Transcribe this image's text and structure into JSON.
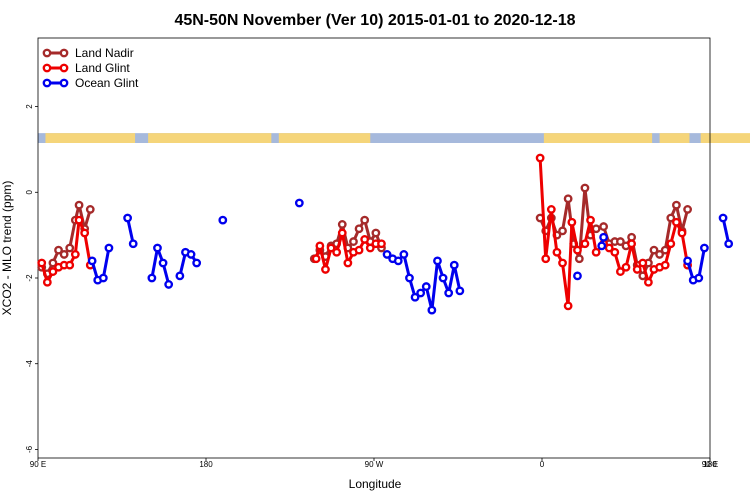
{
  "chart_data": {
    "type": "line",
    "title": "45N-50N November (Ver 10)   2015-01-01 to 2020-12-18",
    "xlabel": "Longitude",
    "ylabel": "XCO2 - MLO trend (ppm)",
    "xlim": [
      90,
      450
    ],
    "ylim": [
      -6.2,
      3.6
    ],
    "x_ticks": [
      {
        "value": 90,
        "label": "90 E"
      },
      {
        "value": 180,
        "label": "180"
      },
      {
        "value": 270,
        "label": "90 W"
      },
      {
        "value": 360,
        "label": "0"
      },
      {
        "value": 450,
        "label": "90 E"
      },
      {
        "value": 540,
        "label": "180"
      }
    ],
    "y_ticks": [
      {
        "value": 2,
        "label": "2"
      },
      {
        "value": 0,
        "label": "0"
      },
      {
        "value": -2,
        "label": "-2"
      },
      {
        "value": -4,
        "label": "-4"
      },
      {
        "value": -6,
        "label": "-6"
      }
    ],
    "land_band": {
      "y_top": 1.38,
      "y_bottom": 1.15,
      "ocean_color": "#a6b9dc",
      "land_color": "#f5d57a",
      "land_segments": [
        [
          94,
          142
        ],
        [
          149,
          215
        ],
        [
          219,
          268
        ],
        [
          361,
          419
        ],
        [
          423,
          439
        ],
        [
          445,
          486
        ],
        [
          503,
          519
        ]
      ]
    },
    "legend": {
      "position": "top-left"
    },
    "series": [
      {
        "name": "Land Nadir",
        "color": "#a52a2a",
        "segments": [
          [
            [
              92,
              -1.75
            ],
            [
              95,
              -1.9
            ],
            [
              98,
              -1.65
            ],
            [
              101,
              -1.35
            ],
            [
              104,
              -1.45
            ],
            [
              107,
              -1.3
            ],
            [
              110,
              -0.65
            ],
            [
              112,
              -0.3
            ],
            [
              115,
              -0.85
            ],
            [
              118,
              -0.4
            ]
          ],
          [
            [
              238,
              -1.55
            ],
            [
              241,
              -1.35
            ],
            [
              244,
              -1.5
            ],
            [
              247,
              -1.25
            ],
            [
              250,
              -1.2
            ],
            [
              253,
              -0.75
            ],
            [
              256,
              -1.3
            ],
            [
              259,
              -1.15
            ],
            [
              262,
              -0.85
            ],
            [
              265,
              -0.65
            ],
            [
              268,
              -1.15
            ],
            [
              271,
              -0.95
            ],
            [
              274,
              -1.3
            ]
          ],
          [
            [
              359,
              -0.6
            ],
            [
              362,
              -0.9
            ],
            [
              365,
              -0.6
            ],
            [
              368,
              -1.0
            ],
            [
              371,
              -0.9
            ],
            [
              374,
              -0.15
            ],
            [
              377,
              -1.2
            ],
            [
              380,
              -1.55
            ],
            [
              383,
              0.1
            ],
            [
              386,
              -1.0
            ],
            [
              389,
              -0.85
            ],
            [
              393,
              -0.8
            ],
            [
              396,
              -1.2
            ],
            [
              399,
              -1.15
            ],
            [
              402,
              -1.15
            ],
            [
              405,
              -1.25
            ],
            [
              408,
              -1.05
            ],
            [
              411,
              -1.7
            ],
            [
              414,
              -1.95
            ],
            [
              417,
              -1.65
            ],
            [
              420,
              -1.35
            ],
            [
              423,
              -1.45
            ],
            [
              426,
              -1.35
            ],
            [
              429,
              -0.6
            ],
            [
              432,
              -0.3
            ],
            [
              435,
              -0.9
            ],
            [
              438,
              -0.4
            ]
          ]
        ]
      },
      {
        "name": "Land Glint",
        "color": "#ee0000",
        "segments": [
          [
            [
              92,
              -1.65
            ],
            [
              95,
              -2.1
            ],
            [
              98,
              -1.85
            ],
            [
              101,
              -1.75
            ],
            [
              104,
              -1.7
            ],
            [
              107,
              -1.7
            ],
            [
              110,
              -1.45
            ],
            [
              112,
              -0.65
            ],
            [
              115,
              -0.95
            ],
            [
              118,
              -1.7
            ]
          ],
          [
            [
              239,
              -1.55
            ],
            [
              241,
              -1.25
            ],
            [
              244,
              -1.8
            ],
            [
              247,
              -1.3
            ],
            [
              250,
              -1.4
            ],
            [
              253,
              -0.95
            ],
            [
              256,
              -1.65
            ],
            [
              259,
              -1.4
            ],
            [
              262,
              -1.35
            ],
            [
              265,
              -1.1
            ],
            [
              268,
              -1.3
            ],
            [
              271,
              -1.2
            ],
            [
              274,
              -1.2
            ]
          ],
          [
            [
              359,
              0.8
            ],
            [
              362,
              -1.55
            ],
            [
              365,
              -0.4
            ],
            [
              368,
              -1.4
            ],
            [
              371,
              -1.65
            ],
            [
              374,
              -2.65
            ],
            [
              376,
              -0.7
            ],
            [
              379,
              -1.35
            ],
            [
              383,
              -1.2
            ],
            [
              386,
              -0.65
            ],
            [
              389,
              -1.4
            ],
            [
              393,
              -1.2
            ],
            [
              396,
              -1.3
            ],
            [
              399,
              -1.4
            ],
            [
              402,
              -1.85
            ],
            [
              405,
              -1.75
            ],
            [
              408,
              -1.2
            ],
            [
              411,
              -1.8
            ],
            [
              414,
              -1.65
            ],
            [
              417,
              -2.1
            ],
            [
              420,
              -1.8
            ],
            [
              423,
              -1.75
            ],
            [
              426,
              -1.7
            ],
            [
              429,
              -1.2
            ],
            [
              432,
              -0.7
            ],
            [
              435,
              -0.95
            ],
            [
              438,
              -1.7
            ]
          ]
        ]
      },
      {
        "name": "Ocean Glint",
        "color": "#0000ee",
        "segments": [
          [
            [
              119,
              -1.6
            ],
            [
              122,
              -2.05
            ],
            [
              125,
              -2.0
            ],
            [
              128,
              -1.3
            ]
          ],
          [
            [
              138,
              -0.6
            ],
            [
              141,
              -1.2
            ]
          ],
          [
            [
              151,
              -2.0
            ],
            [
              154,
              -1.3
            ],
            [
              157,
              -1.65
            ],
            [
              160,
              -2.15
            ]
          ],
          [
            [
              166,
              -1.95
            ],
            [
              169,
              -1.4
            ],
            [
              172,
              -1.45
            ],
            [
              175,
              -1.65
            ]
          ],
          [
            [
              189,
              -0.65
            ]
          ],
          [
            [
              230,
              -0.25
            ]
          ],
          [
            [
              277,
              -1.45
            ],
            [
              280,
              -1.55
            ],
            [
              283,
              -1.6
            ],
            [
              286,
              -1.45
            ],
            [
              289,
              -2.0
            ],
            [
              292,
              -2.45
            ],
            [
              295,
              -2.35
            ],
            [
              298,
              -2.2
            ],
            [
              301,
              -2.75
            ],
            [
              304,
              -1.6
            ],
            [
              307,
              -2.0
            ],
            [
              310,
              -2.35
            ],
            [
              313,
              -1.7
            ],
            [
              316,
              -2.3
            ]
          ],
          [
            [
              379,
              -1.95
            ]
          ],
          [
            [
              392,
              -1.25
            ],
            [
              393,
              -1.05
            ]
          ],
          [
            [
              438,
              -1.6
            ],
            [
              441,
              -2.05
            ],
            [
              444,
              -2.0
            ],
            [
              447,
              -1.3
            ]
          ],
          [
            [
              457,
              -0.6
            ],
            [
              460,
              -1.2
            ]
          ]
        ]
      }
    ]
  }
}
